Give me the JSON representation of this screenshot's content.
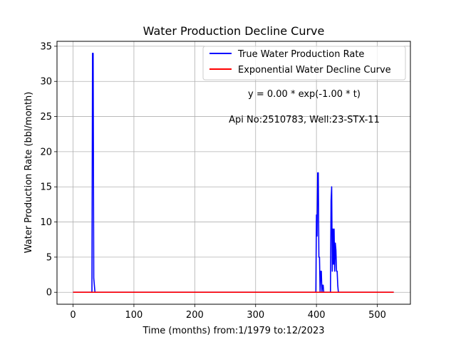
{
  "chart_data": {
    "type": "line",
    "title": "Water Production Decline Curve",
    "xlabel": "Time (months) from:1/1979 to:12/2023",
    "ylabel": "Water Production Rate (bbl/month)",
    "xlim": [
      -26.4,
      554.4
    ],
    "ylim": [
      -1.7,
      35.7
    ],
    "x_ticks": [
      0,
      100,
      200,
      300,
      400,
      500
    ],
    "y_ticks": [
      0,
      5,
      10,
      15,
      20,
      25,
      30,
      35
    ],
    "grid": true,
    "legend_position": "top-right",
    "annotations": [
      "y = 0.00 * exp(-1.00 * t)",
      "Api No:2510783, Well:23-STX-11"
    ],
    "series": [
      {
        "name": "True Water Production Rate",
        "color": "#0000ff",
        "x": [
          0,
          31,
          32,
          33,
          34,
          35,
          36,
          37,
          398,
          399,
          400,
          401,
          402,
          403,
          404,
          405,
          406,
          407,
          408,
          409,
          410,
          411,
          412,
          413,
          414,
          415,
          422,
          423,
          424,
          425,
          426,
          427,
          428,
          429,
          430,
          431,
          432,
          433,
          434,
          435,
          436,
          437,
          438,
          439,
          440,
          527
        ],
        "y": [
          0,
          0,
          34,
          34,
          2,
          1,
          0,
          0,
          0,
          0,
          11,
          8,
          17,
          17,
          5,
          5,
          0,
          3,
          3,
          0,
          1,
          1,
          0,
          0,
          0,
          0,
          0,
          0,
          13,
          15,
          3,
          9,
          4,
          9,
          3,
          7,
          6,
          3,
          3,
          1,
          0,
          0,
          0,
          0,
          0,
          0
        ]
      },
      {
        "name": "Exponential Water Decline Curve",
        "color": "#ff0000",
        "x": [
          0,
          527
        ],
        "y": [
          0,
          0
        ]
      }
    ]
  }
}
